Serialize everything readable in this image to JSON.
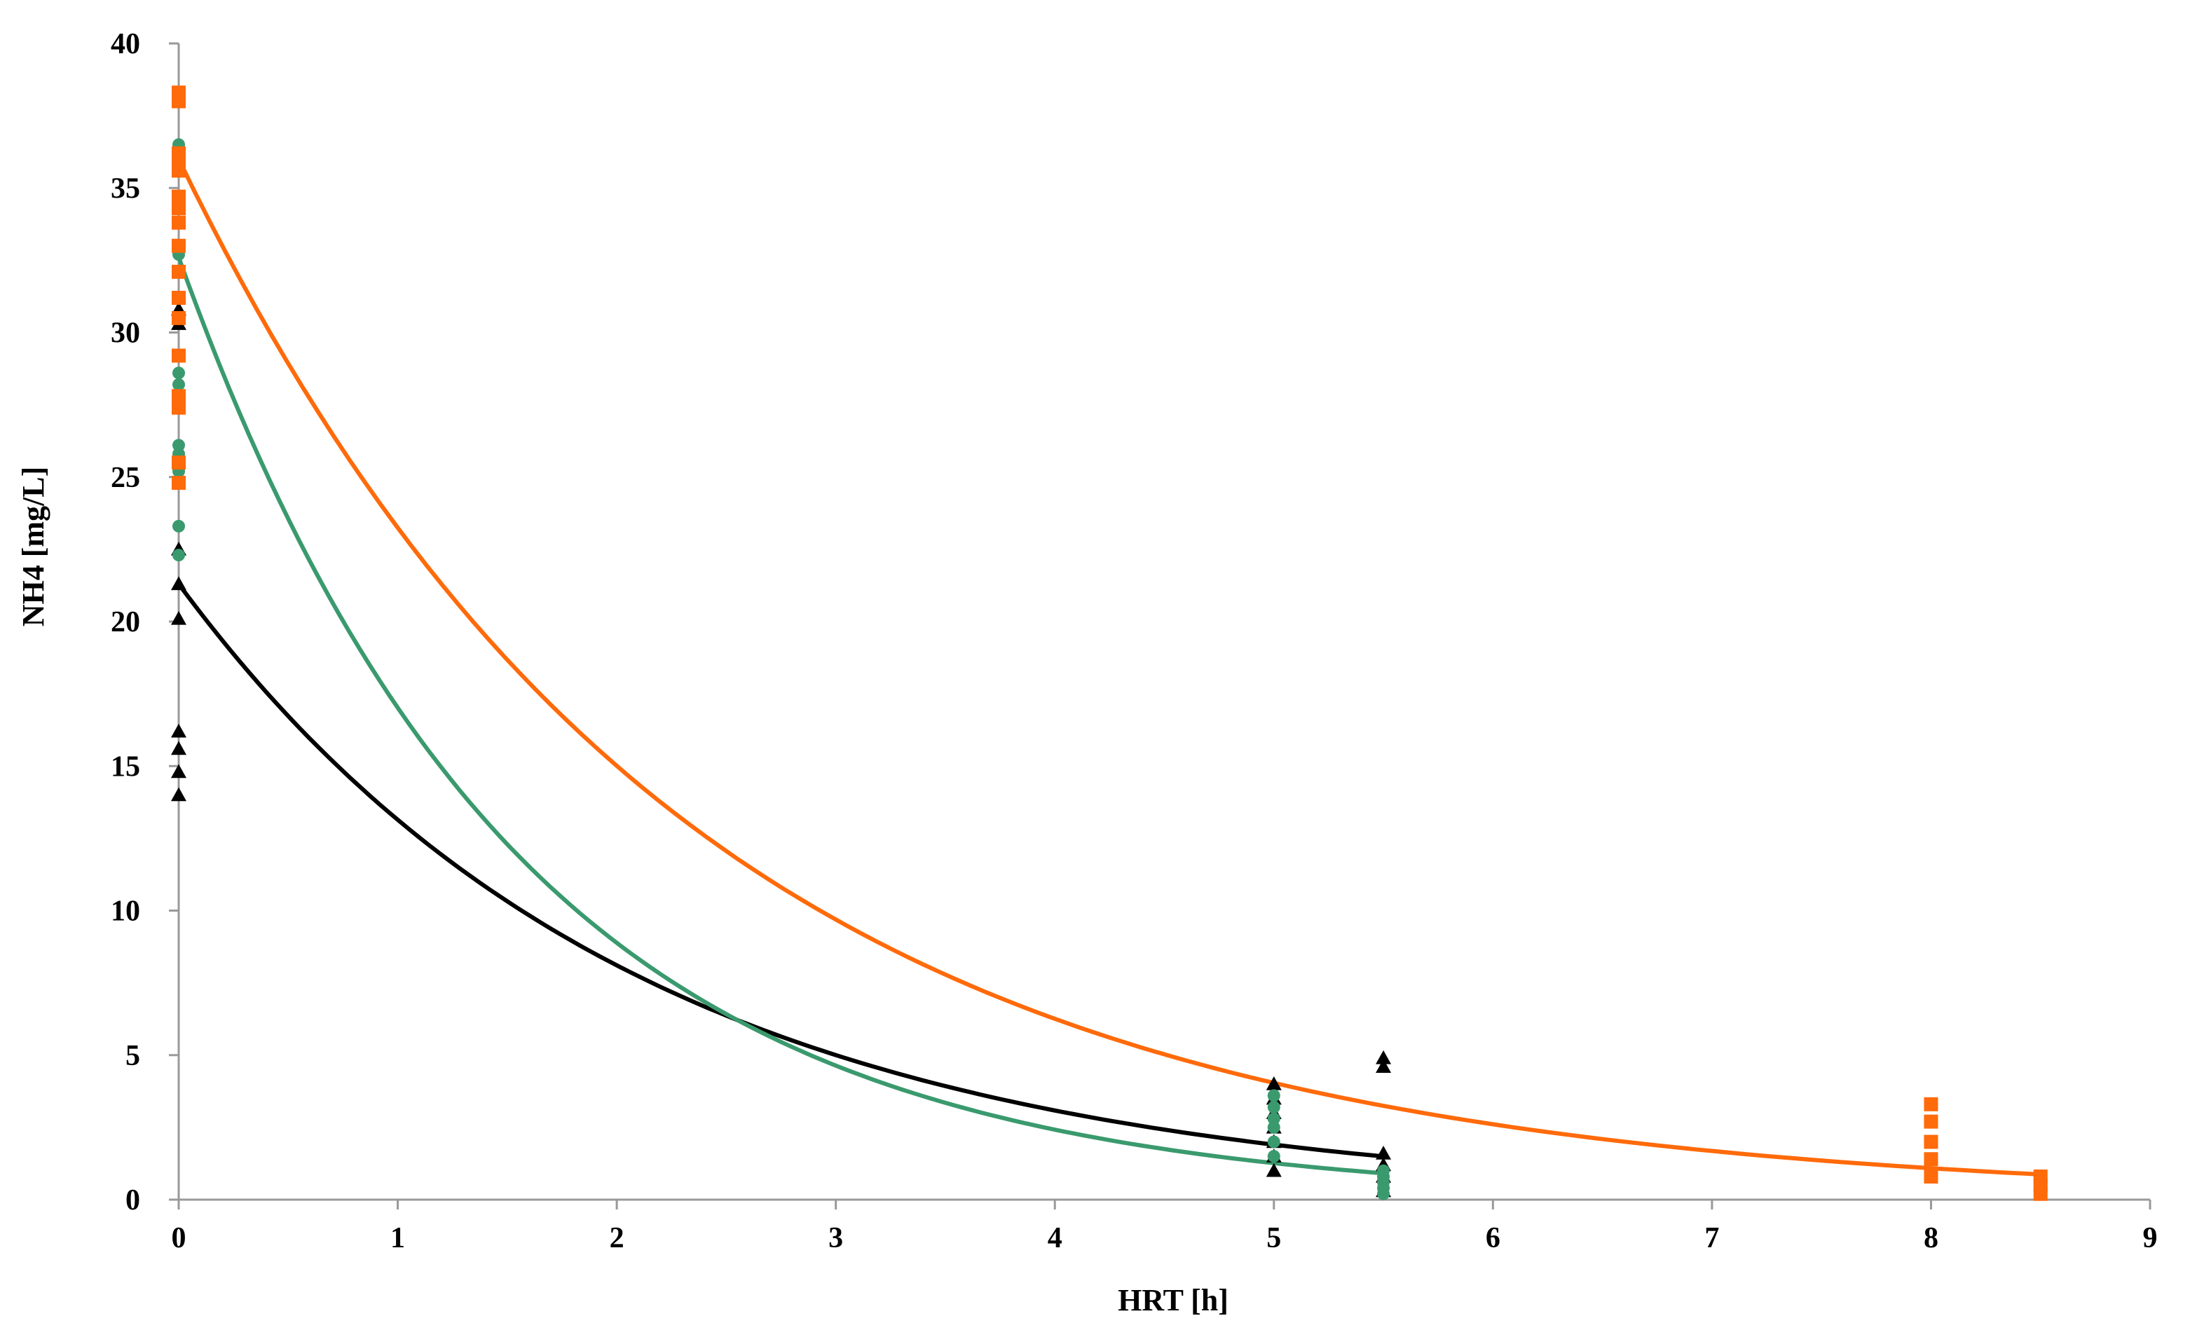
{
  "chart_data": {
    "type": "scatter",
    "title": "",
    "xlabel": "HRT [h]",
    "ylabel": "NH4 [mg/L]",
    "xlim": [
      0,
      9
    ],
    "ylim": [
      0,
      40
    ],
    "x_ticks": [
      "0",
      "1",
      "2",
      "3",
      "4",
      "5",
      "6",
      "7",
      "8",
      "9"
    ],
    "y_ticks": [
      "0",
      "5",
      "10",
      "15",
      "20",
      "25",
      "30",
      "35",
      "40"
    ],
    "grid": false,
    "legend": "none",
    "series": [
      {
        "color": "#000000",
        "marker": "triangle",
        "points": [
          [
            0,
            14.0
          ],
          [
            0,
            14.8
          ],
          [
            0,
            15.6
          ],
          [
            0,
            16.2
          ],
          [
            0,
            20.1
          ],
          [
            0,
            21.3
          ],
          [
            0,
            22.5
          ],
          [
            0,
            30.3
          ],
          [
            0,
            30.8
          ],
          [
            5,
            1.0
          ],
          [
            5,
            1.5
          ],
          [
            5,
            2.0
          ],
          [
            5,
            2.5
          ],
          [
            5,
            3.0
          ],
          [
            5,
            3.5
          ],
          [
            5,
            4.0
          ],
          [
            5.5,
            0.3
          ],
          [
            5.5,
            0.8
          ],
          [
            5.5,
            1.2
          ],
          [
            5.5,
            1.6
          ],
          [
            5.5,
            4.6
          ],
          [
            5.5,
            4.9
          ]
        ],
        "fit": {
          "type": "exponential",
          "x": [
            0,
            5.5
          ],
          "a": 21.3,
          "b": -0.483
        }
      },
      {
        "color": "#3a9a6e",
        "marker": "circle",
        "points": [
          [
            0,
            22.3
          ],
          [
            0,
            23.3
          ],
          [
            0,
            25.2
          ],
          [
            0,
            25.8
          ],
          [
            0,
            26.1
          ],
          [
            0,
            28.2
          ],
          [
            0,
            28.6
          ],
          [
            0,
            32.7
          ],
          [
            0,
            36.5
          ],
          [
            5,
            1.5
          ],
          [
            5,
            2.0
          ],
          [
            5,
            2.5
          ],
          [
            5,
            2.8
          ],
          [
            5,
            3.2
          ],
          [
            5,
            3.6
          ],
          [
            5.5,
            0.2
          ],
          [
            5.5,
            0.4
          ],
          [
            5.5,
            0.6
          ],
          [
            5.5,
            0.8
          ],
          [
            5.5,
            1.0
          ]
        ],
        "fit": {
          "type": "exponential",
          "x": [
            0,
            5.5
          ],
          "a": 32.6,
          "b": -0.65
        }
      },
      {
        "color": "#ff6a0a",
        "marker": "square",
        "points": [
          [
            0,
            24.8
          ],
          [
            0,
            25.5
          ],
          [
            0,
            27.4
          ],
          [
            0,
            27.8
          ],
          [
            0,
            29.2
          ],
          [
            0,
            30.5
          ],
          [
            0,
            31.2
          ],
          [
            0,
            32.1
          ],
          [
            0,
            33.0
          ],
          [
            0,
            33.8
          ],
          [
            0,
            34.3
          ],
          [
            0,
            34.7
          ],
          [
            0,
            35.6
          ],
          [
            0,
            35.9
          ],
          [
            0,
            36.2
          ],
          [
            0,
            38.0
          ],
          [
            0,
            38.3
          ],
          [
            8,
            0.8
          ],
          [
            8,
            1.4
          ],
          [
            8,
            2.0
          ],
          [
            8,
            2.7
          ],
          [
            8,
            3.3
          ],
          [
            8.5,
            0.2
          ],
          [
            8.5,
            0.5
          ],
          [
            8.5,
            0.8
          ]
        ],
        "fit": {
          "type": "exponential",
          "x": [
            0,
            8.5
          ],
          "a": 36.0,
          "b": -0.4375
        }
      }
    ]
  }
}
